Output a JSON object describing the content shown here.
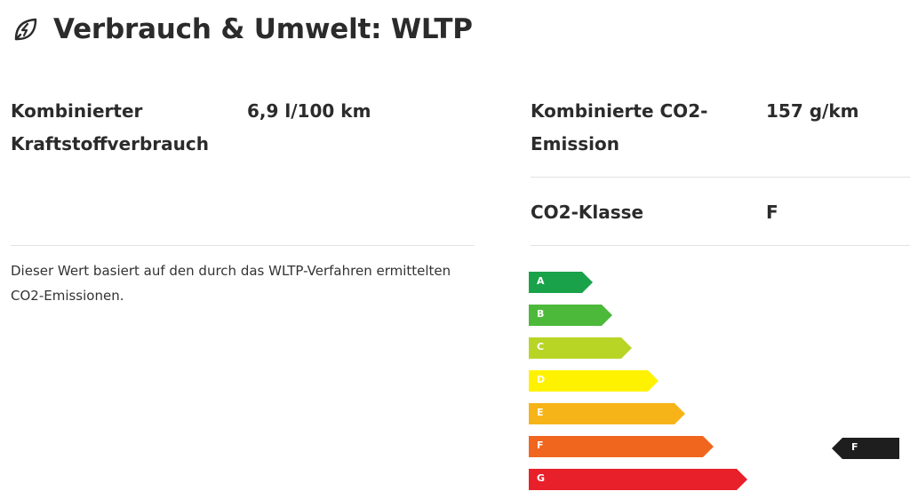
{
  "header": {
    "title": "Verbrauch & Umwelt: WLTP",
    "icon": "leaf-bolt-icon"
  },
  "consumption": {
    "label_line1": "Kombinierter",
    "label_line2": "Kraftstoffverbrauch",
    "value": "6,9 l/100 km"
  },
  "emission": {
    "label_line1": "Kombinierte CO2-",
    "label_line2": "Emission",
    "value": "157 g/km"
  },
  "co2_class": {
    "label": "CO2-Klasse",
    "value": "F"
  },
  "note": {
    "line1": "Dieser Wert basiert auf den durch das WLTP-Verfahren ermittelten",
    "line2": "CO2-Emissionen."
  },
  "energy_scale": {
    "classes": [
      {
        "letter": "A",
        "color": "#1aa24a"
      },
      {
        "letter": "B",
        "color": "#4cb93a"
      },
      {
        "letter": "C",
        "color": "#b8d526"
      },
      {
        "letter": "D",
        "color": "#fff200"
      },
      {
        "letter": "E",
        "color": "#f7b418"
      },
      {
        "letter": "F",
        "color": "#f0661f"
      },
      {
        "letter": "G",
        "color": "#e8202a"
      }
    ],
    "selected": "F",
    "indicator_color": "#1e1e1e"
  }
}
